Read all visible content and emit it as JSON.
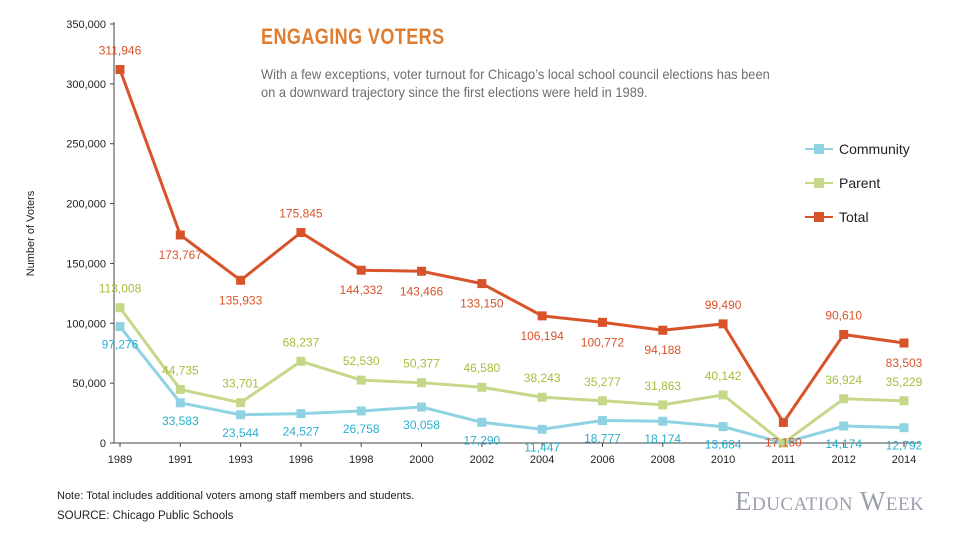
{
  "title": "ENGAGING VOTERS",
  "subtitle": "With a few exceptions, voter turnout for Chicago’s local school council elections has been on a downward trajectory since the first elections were held in 1989.",
  "note": "Note: Total includes additional voters among staff members and students.",
  "source": "SOURCE: Chicago Public Schools",
  "brand": "Education Week",
  "legend": [
    {
      "name": "Community",
      "color": "#8fd3e3"
    },
    {
      "name": "Parent",
      "color": "#c5d88a"
    },
    {
      "name": "Total",
      "color": "#d9532a"
    }
  ],
  "chart_data": {
    "type": "line",
    "ylabel": "Number of Voters",
    "ylim": [
      0,
      350000
    ],
    "yticks": [
      "0",
      "50,000",
      "100,000",
      "150,000",
      "200,000",
      "250,000",
      "300,000",
      "350,000"
    ],
    "categories": [
      "1989",
      "1991",
      "1993",
      "1996",
      "1998",
      "2000",
      "2002",
      "2004",
      "2006",
      "2008",
      "2010",
      "2011",
      "2012",
      "2014"
    ],
    "grid": false,
    "legend_position": "right",
    "series": [
      {
        "name": "Community",
        "color": "#8fd3e3",
        "label_color": "#2ab0cf",
        "label_pos": "below",
        "values": [
          97276,
          33583,
          23544,
          24527,
          26758,
          30058,
          17290,
          11447,
          18777,
          18174,
          13684,
          0,
          14174,
          12792
        ],
        "labels": [
          "97,276",
          "33,583",
          "23,544",
          "24,527",
          "26,758",
          "30,058",
          "17,290",
          "11,447",
          "18,777",
          "18,174",
          "13,684",
          "",
          "14,174",
          "12,792"
        ]
      },
      {
        "name": "Parent",
        "color": "#c5d88a",
        "label_color": "#a8bc3c",
        "label_pos": "above",
        "values": [
          113008,
          44735,
          33701,
          68237,
          52530,
          50377,
          46580,
          38243,
          35277,
          31863,
          40142,
          0,
          36924,
          35229
        ],
        "labels": [
          "113,008",
          "44,735",
          "33,701",
          "68,237",
          "52,530",
          "50,377",
          "46,580",
          "38,243",
          "35,277",
          "31,863",
          "40,142",
          "",
          "36,924",
          "35,229"
        ]
      },
      {
        "name": "Total",
        "color": "#d9532a",
        "label_color": "#d9532a",
        "label_pos": "mixed",
        "values": [
          311946,
          173767,
          135933,
          175845,
          144332,
          143466,
          133150,
          106194,
          100772,
          94188,
          99490,
          17150,
          90610,
          83503
        ],
        "labels": [
          "311,946",
          "173,767",
          "135,933",
          "175,845",
          "144,332",
          "143,466",
          "133,150",
          "106,194",
          "100,772",
          "94,188",
          "99,490",
          "17,150",
          "90,610",
          "83,503"
        ]
      }
    ]
  }
}
